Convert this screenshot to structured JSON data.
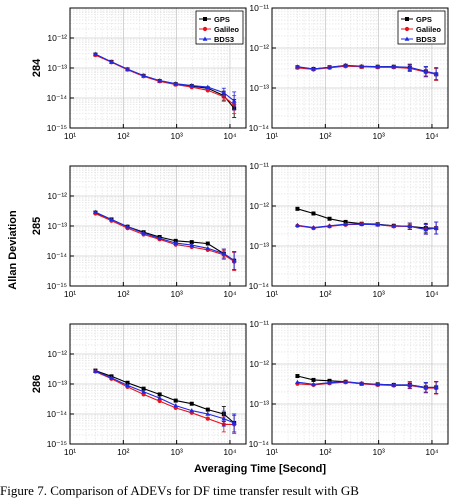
{
  "figure": {
    "ylabel": "Allan Deviation",
    "xlabel": "Averaging Time [Second]",
    "caption": "Figure 7. Comparison of ADEVs for DF time transfer result with GB"
  },
  "colors": {
    "GPS": "#000000",
    "Galileo": "#e8141c",
    "BDS3": "#1f2ae0"
  },
  "chart_data": [
    {
      "type": "line",
      "row_label": "284",
      "column": 0,
      "xscale": "log",
      "yscale": "log",
      "xlim": [
        10,
        20000
      ],
      "ylim": [
        1e-15,
        1e-11
      ],
      "xticks": [
        "10¹",
        "10²",
        "10³",
        "10⁴"
      ],
      "yticks": [
        "10⁻¹⁵",
        "10⁻¹⁴",
        "10⁻¹³",
        "10⁻¹²"
      ],
      "legend": "top-right",
      "x": [
        30,
        60,
        120,
        240,
        480,
        960,
        1920,
        3840,
        7680,
        12000
      ],
      "series": [
        {
          "name": "GPS",
          "marker": "square",
          "values": [
            2.8e-13,
            1.6e-13,
            9e-14,
            5.5e-14,
            3.7e-14,
            2.9e-14,
            2.5e-14,
            2.1e-14,
            1.2e-14,
            4.5e-15
          ],
          "err": [
            0,
            0,
            0,
            0,
            0,
            0,
            0,
            0,
            0.15,
            0.3
          ]
        },
        {
          "name": "Galileo",
          "marker": "circle",
          "values": [
            2.7e-13,
            1.55e-13,
            8.8e-14,
            5.3e-14,
            3.6e-14,
            2.8e-14,
            2.3e-14,
            1.8e-14,
            1.1e-14,
            6e-15
          ],
          "err": [
            0,
            0,
            0,
            0,
            0,
            0,
            0,
            0,
            0.15,
            0.3
          ]
        },
        {
          "name": "BDS3",
          "marker": "triangle",
          "values": [
            2.9e-13,
            1.6e-13,
            9.2e-14,
            5.6e-14,
            3.8e-14,
            3e-14,
            2.6e-14,
            2.3e-14,
            1.5e-14,
            8e-15
          ],
          "err": [
            0,
            0,
            0,
            0,
            0,
            0,
            0,
            0,
            0.15,
            0.3
          ]
        }
      ]
    },
    {
      "type": "line",
      "column": 1,
      "xscale": "log",
      "yscale": "log",
      "xlim": [
        10,
        20000
      ],
      "ylim": [
        1e-14,
        1e-11
      ],
      "xticks": [
        "10¹",
        "10²",
        "10³",
        "10⁴"
      ],
      "yticks": [
        "10⁻¹⁴",
        "10⁻¹³",
        "10⁻¹²",
        "10⁻¹¹"
      ],
      "legend": "top-right",
      "x": [
        30,
        60,
        120,
        240,
        480,
        960,
        1920,
        3840,
        7680,
        12000
      ],
      "series": [
        {
          "name": "GPS",
          "marker": "square",
          "values": [
            3.3e-13,
            3e-13,
            3.3e-13,
            3.6e-13,
            3.4e-13,
            3.4e-13,
            3.4e-13,
            3.2e-13,
            2.6e-13,
            2.2e-13
          ],
          "err": [
            0,
            0,
            0,
            0,
            0,
            0,
            0,
            0.08,
            0.12,
            0.15
          ]
        },
        {
          "name": "Galileo",
          "marker": "circle",
          "values": [
            3.2e-13,
            2.9e-13,
            3.2e-13,
            3.5e-13,
            3.4e-13,
            3.3e-13,
            3.3e-13,
            3.1e-13,
            2.5e-13,
            2.2e-13
          ],
          "err": [
            0,
            0,
            0,
            0,
            0,
            0,
            0,
            0.08,
            0.12,
            0.15
          ]
        },
        {
          "name": "BDS3",
          "marker": "triangle",
          "values": [
            3.4e-13,
            3e-13,
            3.3e-13,
            3.7e-13,
            3.5e-13,
            3.4e-13,
            3.4e-13,
            3.3e-13,
            2.6e-13,
            2.3e-13
          ],
          "err": [
            0,
            0,
            0,
            0,
            0,
            0,
            0,
            0.08,
            0.12,
            0.15
          ]
        }
      ]
    },
    {
      "type": "line",
      "row_label": "285",
      "column": 0,
      "xscale": "log",
      "yscale": "log",
      "xlim": [
        10,
        20000
      ],
      "ylim": [
        1e-15,
        1e-11
      ],
      "xticks": [
        "10¹",
        "10²",
        "10³",
        "10⁴"
      ],
      "yticks": [
        "10⁻¹⁵",
        "10⁻¹⁴",
        "10⁻¹³",
        "10⁻¹²"
      ],
      "x": [
        30,
        60,
        120,
        240,
        480,
        960,
        1920,
        3840,
        7680,
        12000
      ],
      "series": [
        {
          "name": "GPS",
          "marker": "square",
          "values": [
            2.8e-13,
            1.65e-13,
            9.5e-14,
            6.2e-14,
            4.3e-14,
            3.2e-14,
            2.9e-14,
            2.6e-14,
            1.2e-14,
            7e-15
          ],
          "err": [
            0,
            0,
            0,
            0,
            0,
            0,
            0,
            0,
            0.15,
            0.3
          ]
        },
        {
          "name": "Galileo",
          "marker": "circle",
          "values": [
            2.6e-13,
            1.5e-13,
            8.5e-14,
            5.2e-14,
            3.6e-14,
            2.4e-14,
            2e-14,
            1.6e-14,
            1.1e-14,
            6.5e-15
          ],
          "err": [
            0,
            0,
            0,
            0,
            0,
            0,
            0,
            0,
            0.15,
            0.3
          ]
        },
        {
          "name": "BDS3",
          "marker": "triangle",
          "values": [
            2.9e-13,
            1.65e-13,
            9.5e-14,
            5.8e-14,
            3.9e-14,
            2.7e-14,
            2.3e-14,
            1.8e-14,
            1.2e-14,
            7e-15
          ],
          "err": [
            0,
            0,
            0,
            0,
            0,
            0,
            0,
            0,
            0.15,
            0.3
          ]
        }
      ]
    },
    {
      "type": "line",
      "column": 1,
      "xscale": "log",
      "yscale": "log",
      "xlim": [
        10,
        20000
      ],
      "ylim": [
        1e-14,
        1e-11
      ],
      "xticks": [
        "10¹",
        "10²",
        "10³",
        "10⁴"
      ],
      "yticks": [
        "10⁻¹⁴",
        "10⁻¹³",
        "10⁻¹²",
        "10⁻¹¹"
      ],
      "x": [
        30,
        60,
        120,
        240,
        480,
        960,
        1920,
        3840,
        7680,
        12000
      ],
      "series": [
        {
          "name": "GPS",
          "marker": "square",
          "values": [
            8.5e-13,
            6.5e-13,
            4.8e-13,
            4e-13,
            3.6e-13,
            3.5e-13,
            3.2e-13,
            3.1e-13,
            2.8e-13,
            2.8e-13
          ],
          "err": [
            0,
            0,
            0,
            0,
            0,
            0,
            0,
            0.08,
            0.12,
            0.15
          ]
        },
        {
          "name": "Galileo",
          "marker": "circle",
          "values": [
            3.2e-13,
            2.8e-13,
            3.1e-13,
            3.4e-13,
            3.5e-13,
            3.4e-13,
            3.1e-13,
            3.1e-13,
            2.6e-13,
            2.8e-13
          ],
          "err": [
            0,
            0,
            0,
            0,
            0,
            0,
            0,
            0.08,
            0.12,
            0.15
          ]
        },
        {
          "name": "BDS3",
          "marker": "triangle",
          "values": [
            3.3e-13,
            2.9e-13,
            3.2e-13,
            3.5e-13,
            3.5e-13,
            3.4e-13,
            3.2e-13,
            3.1e-13,
            2.6e-13,
            2.8e-13
          ],
          "err": [
            0,
            0,
            0,
            0,
            0,
            0,
            0,
            0.08,
            0.12,
            0.15
          ]
        }
      ]
    },
    {
      "type": "line",
      "row_label": "286",
      "column": 0,
      "xscale": "log",
      "yscale": "log",
      "xlim": [
        10,
        20000
      ],
      "ylim": [
        1e-15,
        1e-11
      ],
      "xticks": [
        "10¹",
        "10²",
        "10³",
        "10⁴"
      ],
      "yticks": [
        "10⁻¹⁵",
        "10⁻¹⁴",
        "10⁻¹³",
        "10⁻¹²"
      ],
      "x": [
        30,
        60,
        120,
        240,
        480,
        960,
        1920,
        3840,
        7680,
        12000
      ],
      "series": [
        {
          "name": "GPS",
          "marker": "square",
          "values": [
            2.8e-13,
            1.8e-13,
            1.1e-13,
            7e-14,
            4.5e-14,
            2.8e-14,
            2.2e-14,
            1.4e-14,
            1e-14,
            5e-15
          ],
          "err": [
            0,
            0,
            0,
            0,
            0,
            0,
            0,
            0,
            0.25,
            0.3
          ]
        },
        {
          "name": "Galileo",
          "marker": "circle",
          "values": [
            2.6e-13,
            1.5e-13,
            8e-14,
            4.5e-14,
            2.7e-14,
            1.6e-14,
            1.1e-14,
            7e-15,
            4.5e-15,
            4.5e-15
          ],
          "err": [
            0,
            0,
            0,
            0,
            0,
            0,
            0,
            0,
            0.25,
            0.3
          ]
        },
        {
          "name": "BDS3",
          "marker": "triangle",
          "values": [
            2.7e-13,
            1.6e-13,
            9e-14,
            5.5e-14,
            3.4e-14,
            1.9e-14,
            1.3e-14,
            1e-14,
            7e-15,
            5e-15
          ],
          "err": [
            0,
            0,
            0,
            0,
            0,
            0,
            0,
            0,
            0.25,
            0.3
          ]
        }
      ]
    },
    {
      "type": "line",
      "column": 1,
      "xscale": "log",
      "yscale": "log",
      "xlim": [
        10,
        20000
      ],
      "ylim": [
        1e-14,
        1e-11
      ],
      "xticks": [
        "10¹",
        "10²",
        "10³",
        "10⁴"
      ],
      "yticks": [
        "10⁻¹⁴",
        "10⁻¹³",
        "10⁻¹²",
        "10⁻¹¹"
      ],
      "x": [
        30,
        60,
        120,
        240,
        480,
        960,
        1920,
        3840,
        7680,
        12000
      ],
      "series": [
        {
          "name": "GPS",
          "marker": "square",
          "values": [
            5e-13,
            4e-13,
            3.8e-13,
            3.6e-13,
            3.2e-13,
            3.1e-13,
            3e-13,
            3e-13,
            2.6e-13,
            2.6e-13
          ],
          "err": [
            0,
            0,
            0,
            0,
            0,
            0,
            0,
            0.08,
            0.12,
            0.15
          ]
        },
        {
          "name": "Galileo",
          "marker": "circle",
          "values": [
            3.2e-13,
            3e-13,
            3.3e-13,
            3.5e-13,
            3.2e-13,
            3e-13,
            2.9e-13,
            2.9e-13,
            2.5e-13,
            2.5e-13
          ],
          "err": [
            0,
            0,
            0,
            0,
            0,
            0,
            0,
            0.08,
            0.12,
            0.15
          ]
        },
        {
          "name": "BDS3",
          "marker": "triangle",
          "values": [
            3.5e-13,
            3.1e-13,
            3.4e-13,
            3.6e-13,
            3.3e-13,
            3.1e-13,
            3e-13,
            3e-13,
            2.6e-13,
            2.6e-13
          ],
          "err": [
            0,
            0,
            0,
            0,
            0,
            0,
            0,
            0.08,
            0.12,
            0.15
          ]
        }
      ]
    }
  ]
}
